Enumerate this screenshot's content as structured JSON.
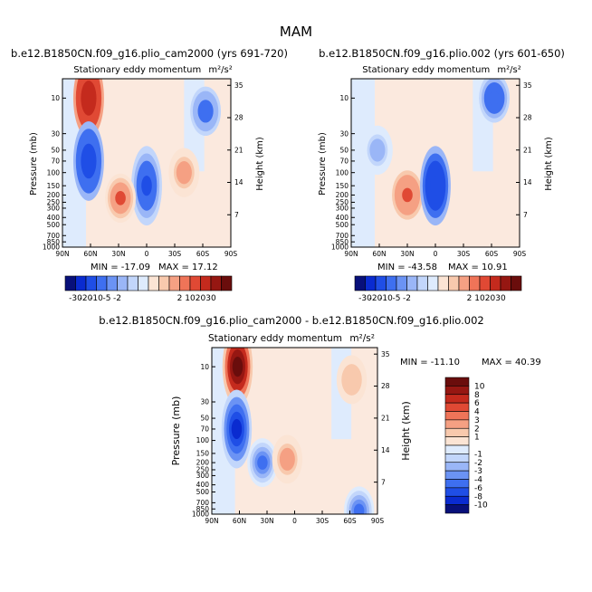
{
  "page_title": "MAM",
  "colors": {
    "neg": [
      "#08107a",
      "#0a2bd0",
      "#1f4ee6",
      "#3e6ff0",
      "#6b93f4",
      "#9ab6f7",
      "#c2d6fb",
      "#deebfd"
    ],
    "pos": [
      "#fbe4d4",
      "#f8c9ad",
      "#f5a083",
      "#ef7458",
      "#e04934",
      "#c42a1d",
      "#961712",
      "#6a0d0c"
    ]
  },
  "chart_data": [
    {
      "type": "heatmap",
      "id": "left",
      "title": "b.e12.B1850CN.f09_g16.plio_cam2000 (yrs 691-720)",
      "subtitle": "Stationary eddy momentum",
      "units": "m²/s²",
      "ylabel": "Pressure (mb)",
      "y2label": "Height (km)",
      "xticks": [
        "90N",
        "60N",
        "30N",
        "0",
        "30S",
        "60S",
        "90S"
      ],
      "yticks": [
        "10",
        "30",
        "50",
        "70",
        "100",
        "150",
        "200",
        "250",
        "300",
        "400",
        "500",
        "700",
        "850",
        "1000"
      ],
      "y2ticks": [
        "35",
        "28",
        "21",
        "14",
        "7"
      ],
      "min_label": "MIN = -17.09",
      "max_label": "MAX = 17.12",
      "contour_levels": [
        -30,
        -20,
        -10,
        -5,
        -2,
        -1,
        1,
        2,
        5,
        10,
        20,
        30
      ],
      "features": [
        {
          "lat": 62,
          "p": 10,
          "value": 17
        },
        {
          "lat": 62,
          "p": 70,
          "value": -17
        },
        {
          "lat": 0,
          "p": 150,
          "value": -12
        },
        {
          "lat": 28,
          "p": 220,
          "value": 6
        },
        {
          "lat": -63,
          "p": 15,
          "value": -9
        },
        {
          "lat": -40,
          "p": 100,
          "value": 3
        }
      ]
    },
    {
      "type": "heatmap",
      "id": "right",
      "title": "b.e12.B1850CN.f09_g16.plio.002 (yrs 601-650)",
      "subtitle": "Stationary eddy momentum",
      "units": "m²/s²",
      "ylabel": "Pressure (mb)",
      "y2label": "Height (km)",
      "xticks": [
        "90N",
        "60N",
        "30N",
        "0",
        "30S",
        "60S",
        "90S"
      ],
      "yticks": [
        "10",
        "30",
        "50",
        "70",
        "100",
        "150",
        "200",
        "250",
        "300",
        "400",
        "500",
        "700",
        "850",
        "1000"
      ],
      "y2ticks": [
        "35",
        "28",
        "21",
        "14",
        "7"
      ],
      "min_label": "MIN = -43.58",
      "max_label": "MAX = 10.91",
      "contour_levels": [
        -30,
        -20,
        -10,
        -5,
        -2,
        -1,
        1,
        2,
        5,
        10,
        20,
        30
      ],
      "features": [
        {
          "lat": 30,
          "p": 200,
          "value": 7
        },
        {
          "lat": 0,
          "p": 150,
          "value": -20
        },
        {
          "lat": -63,
          "p": 10,
          "value": -10
        },
        {
          "lat": 62,
          "p": 50,
          "value": -3
        }
      ]
    },
    {
      "type": "heatmap",
      "id": "diff",
      "title": "b.e12.B1850CN.f09_g16.plio_cam2000 - b.e12.B1850CN.f09_g16.plio.002",
      "subtitle": "Stationary eddy momentum",
      "units": "m²/s²",
      "ylabel": "Pressure (mb)",
      "y2label": "Height (km)",
      "xticks": [
        "90N",
        "60N",
        "30N",
        "0",
        "30S",
        "60S",
        "90S"
      ],
      "yticks": [
        "10",
        "30",
        "50",
        "70",
        "100",
        "150",
        "200",
        "250",
        "300",
        "400",
        "500",
        "700",
        "850",
        "1000"
      ],
      "y2ticks": [
        "35",
        "28",
        "21",
        "14",
        "7"
      ],
      "min_label": "MIN = -11.10",
      "max_label": "MAX = 40.39",
      "contour_levels": [
        -10,
        -8,
        -6,
        -4,
        -3,
        -2,
        -1,
        1,
        2,
        3,
        4,
        6,
        8,
        10
      ],
      "features": [
        {
          "lat": 62,
          "p": 10,
          "value": 12
        },
        {
          "lat": 63,
          "p": 70,
          "value": -11
        },
        {
          "lat": 35,
          "p": 200,
          "value": -5
        },
        {
          "lat": 8,
          "p": 180,
          "value": 3
        },
        {
          "lat": -62,
          "p": 15,
          "value": 2
        },
        {
          "lat": -70,
          "p": 900,
          "value": -5
        }
      ]
    }
  ],
  "colorbar_top": {
    "labels": [
      "-30",
      "-20",
      "-10",
      "-5",
      "-2",
      "2",
      "10",
      "20",
      "30"
    ],
    "levels": [
      -30,
      -20,
      -10,
      -5,
      -2,
      -1,
      1,
      2,
      5,
      10,
      20,
      30
    ]
  },
  "colorbar_side": {
    "labels": [
      "10",
      "8",
      "6",
      "4",
      "3",
      "2",
      "1",
      "-1",
      "-2",
      "-3",
      "-4",
      "-6",
      "-8",
      "-10"
    ],
    "levels": [
      10,
      8,
      6,
      4,
      3,
      2,
      1,
      -1,
      -2,
      -3,
      -4,
      -6,
      -8,
      -10
    ]
  }
}
